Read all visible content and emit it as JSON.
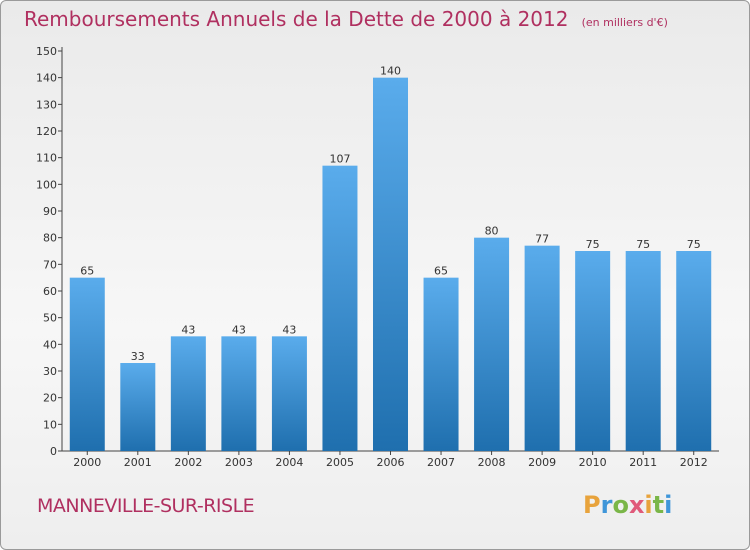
{
  "chart_data": {
    "type": "bar",
    "title": "Remboursements Annuels de la Dette de 2000 à 2012",
    "unit_note": "(en milliers d'€)",
    "categories": [
      "2000",
      "2001",
      "2002",
      "2003",
      "2004",
      "2005",
      "2006",
      "2007",
      "2008",
      "2009",
      "2010",
      "2011",
      "2012"
    ],
    "values": [
      65,
      33,
      43,
      43,
      43,
      107,
      140,
      65,
      80,
      77,
      75,
      75,
      75
    ],
    "ylim": [
      0,
      150
    ],
    "yticks": [
      0,
      10,
      20,
      30,
      40,
      50,
      60,
      70,
      80,
      90,
      100,
      110,
      120,
      130,
      140,
      150
    ],
    "xlabel": "",
    "ylabel": "",
    "grid": false,
    "data_labels": true,
    "colors": {
      "bar_top": "#5aacec",
      "bar_bottom": "#1f6fae",
      "title": "#b03060",
      "place": "#b03060"
    }
  },
  "footer": {
    "place": "MANNEVILLE-SUR-RISLE",
    "brand": "Proxiti",
    "brand_colors": [
      "#e8a33c",
      "#3f96d9",
      "#7ab648",
      "#e05a7a",
      "#e8a33c",
      "#7ab648",
      "#3f96d9"
    ]
  }
}
